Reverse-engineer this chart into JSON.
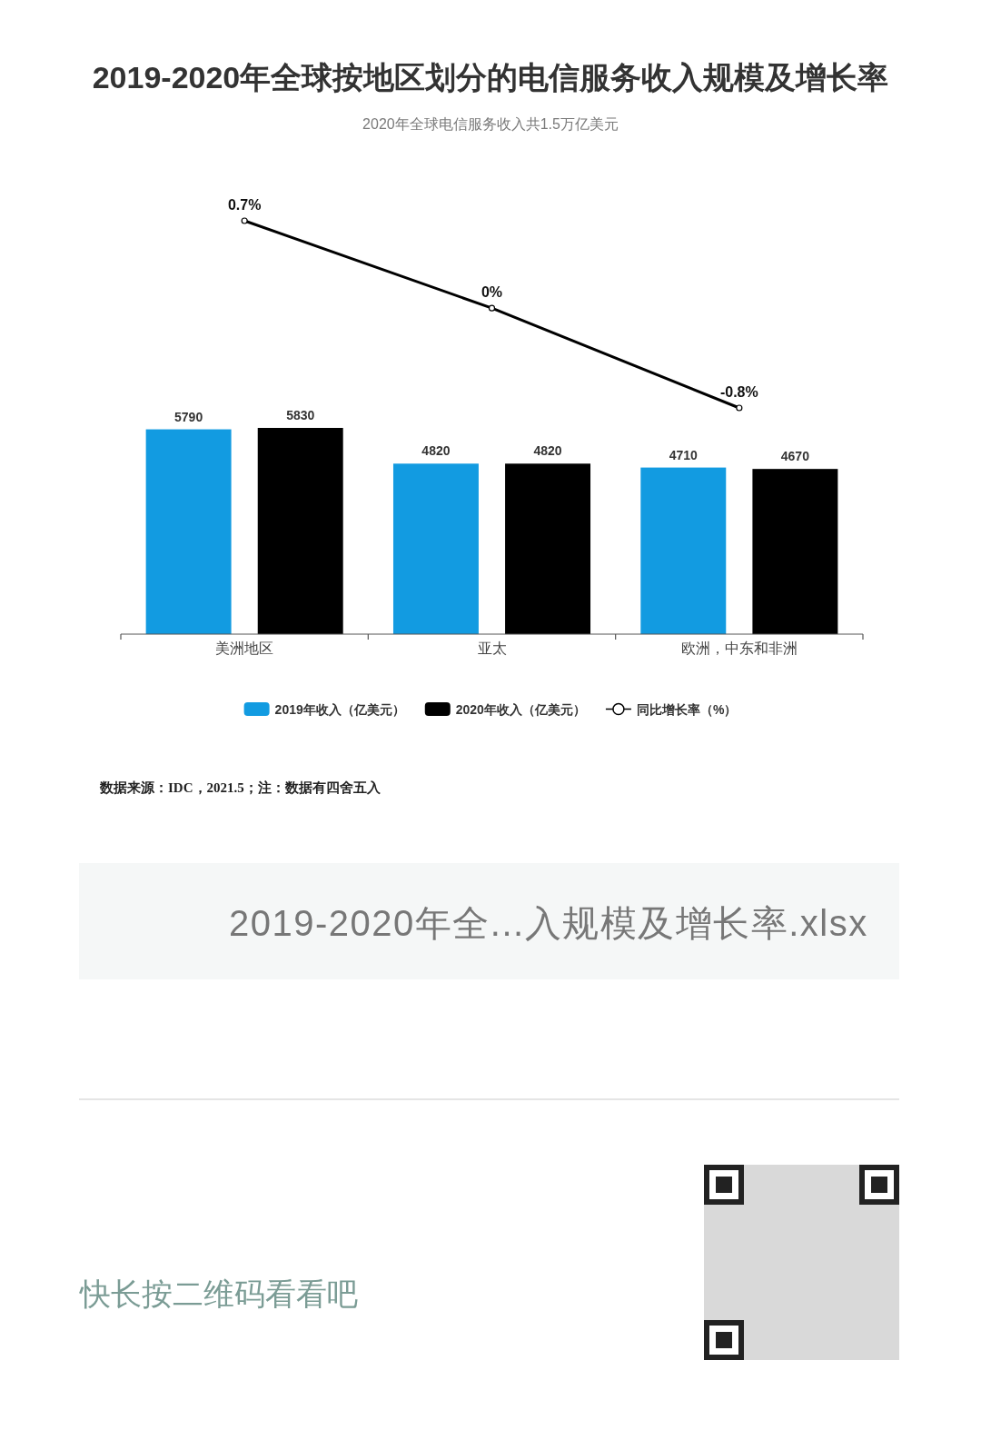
{
  "chart_data": [
    {
      "type": "line",
      "title": "2019-2020年全球按地区划分的电信服务收入规模及增长率",
      "subtitle": "2020年全球电信服务收入共1.5万亿美元",
      "categories": [
        null,
        null,
        null
      ],
      "tick_labels": false,
      "legend": "bottom",
      "series": [
        {
          "name": "同比增长率（%）",
          "color": "#000000",
          "marker": "circle",
          "line_style": "solid",
          "values": [
            0.7,
            0,
            -0.8
          ],
          "value_labels": [
            "0.7%",
            "0%",
            "-0.8%"
          ]
        }
      ]
    },
    {
      "type": "bar",
      "categories": [
        "美洲地区",
        "亚太",
        "欧洲，中东和非洲"
      ],
      "tick_labels": "x",
      "legend": "bottom",
      "data_labels": true,
      "series": [
        {
          "name": "2019年收入（亿美元）",
          "color": "#129be1",
          "values": [
            5790,
            4820,
            4710
          ]
        },
        {
          "name": "2020年收入（亿美元）",
          "color": "#000000",
          "values": [
            5830,
            4820,
            4670
          ]
        }
      ],
      "annotations": [
        "数据来源：IDC，2021.5；注：数据有四舍五入",
        "2019-2020年全...入规模及增长率.xlsx",
        "快长按二维码看看吧"
      ]
    }
  ]
}
